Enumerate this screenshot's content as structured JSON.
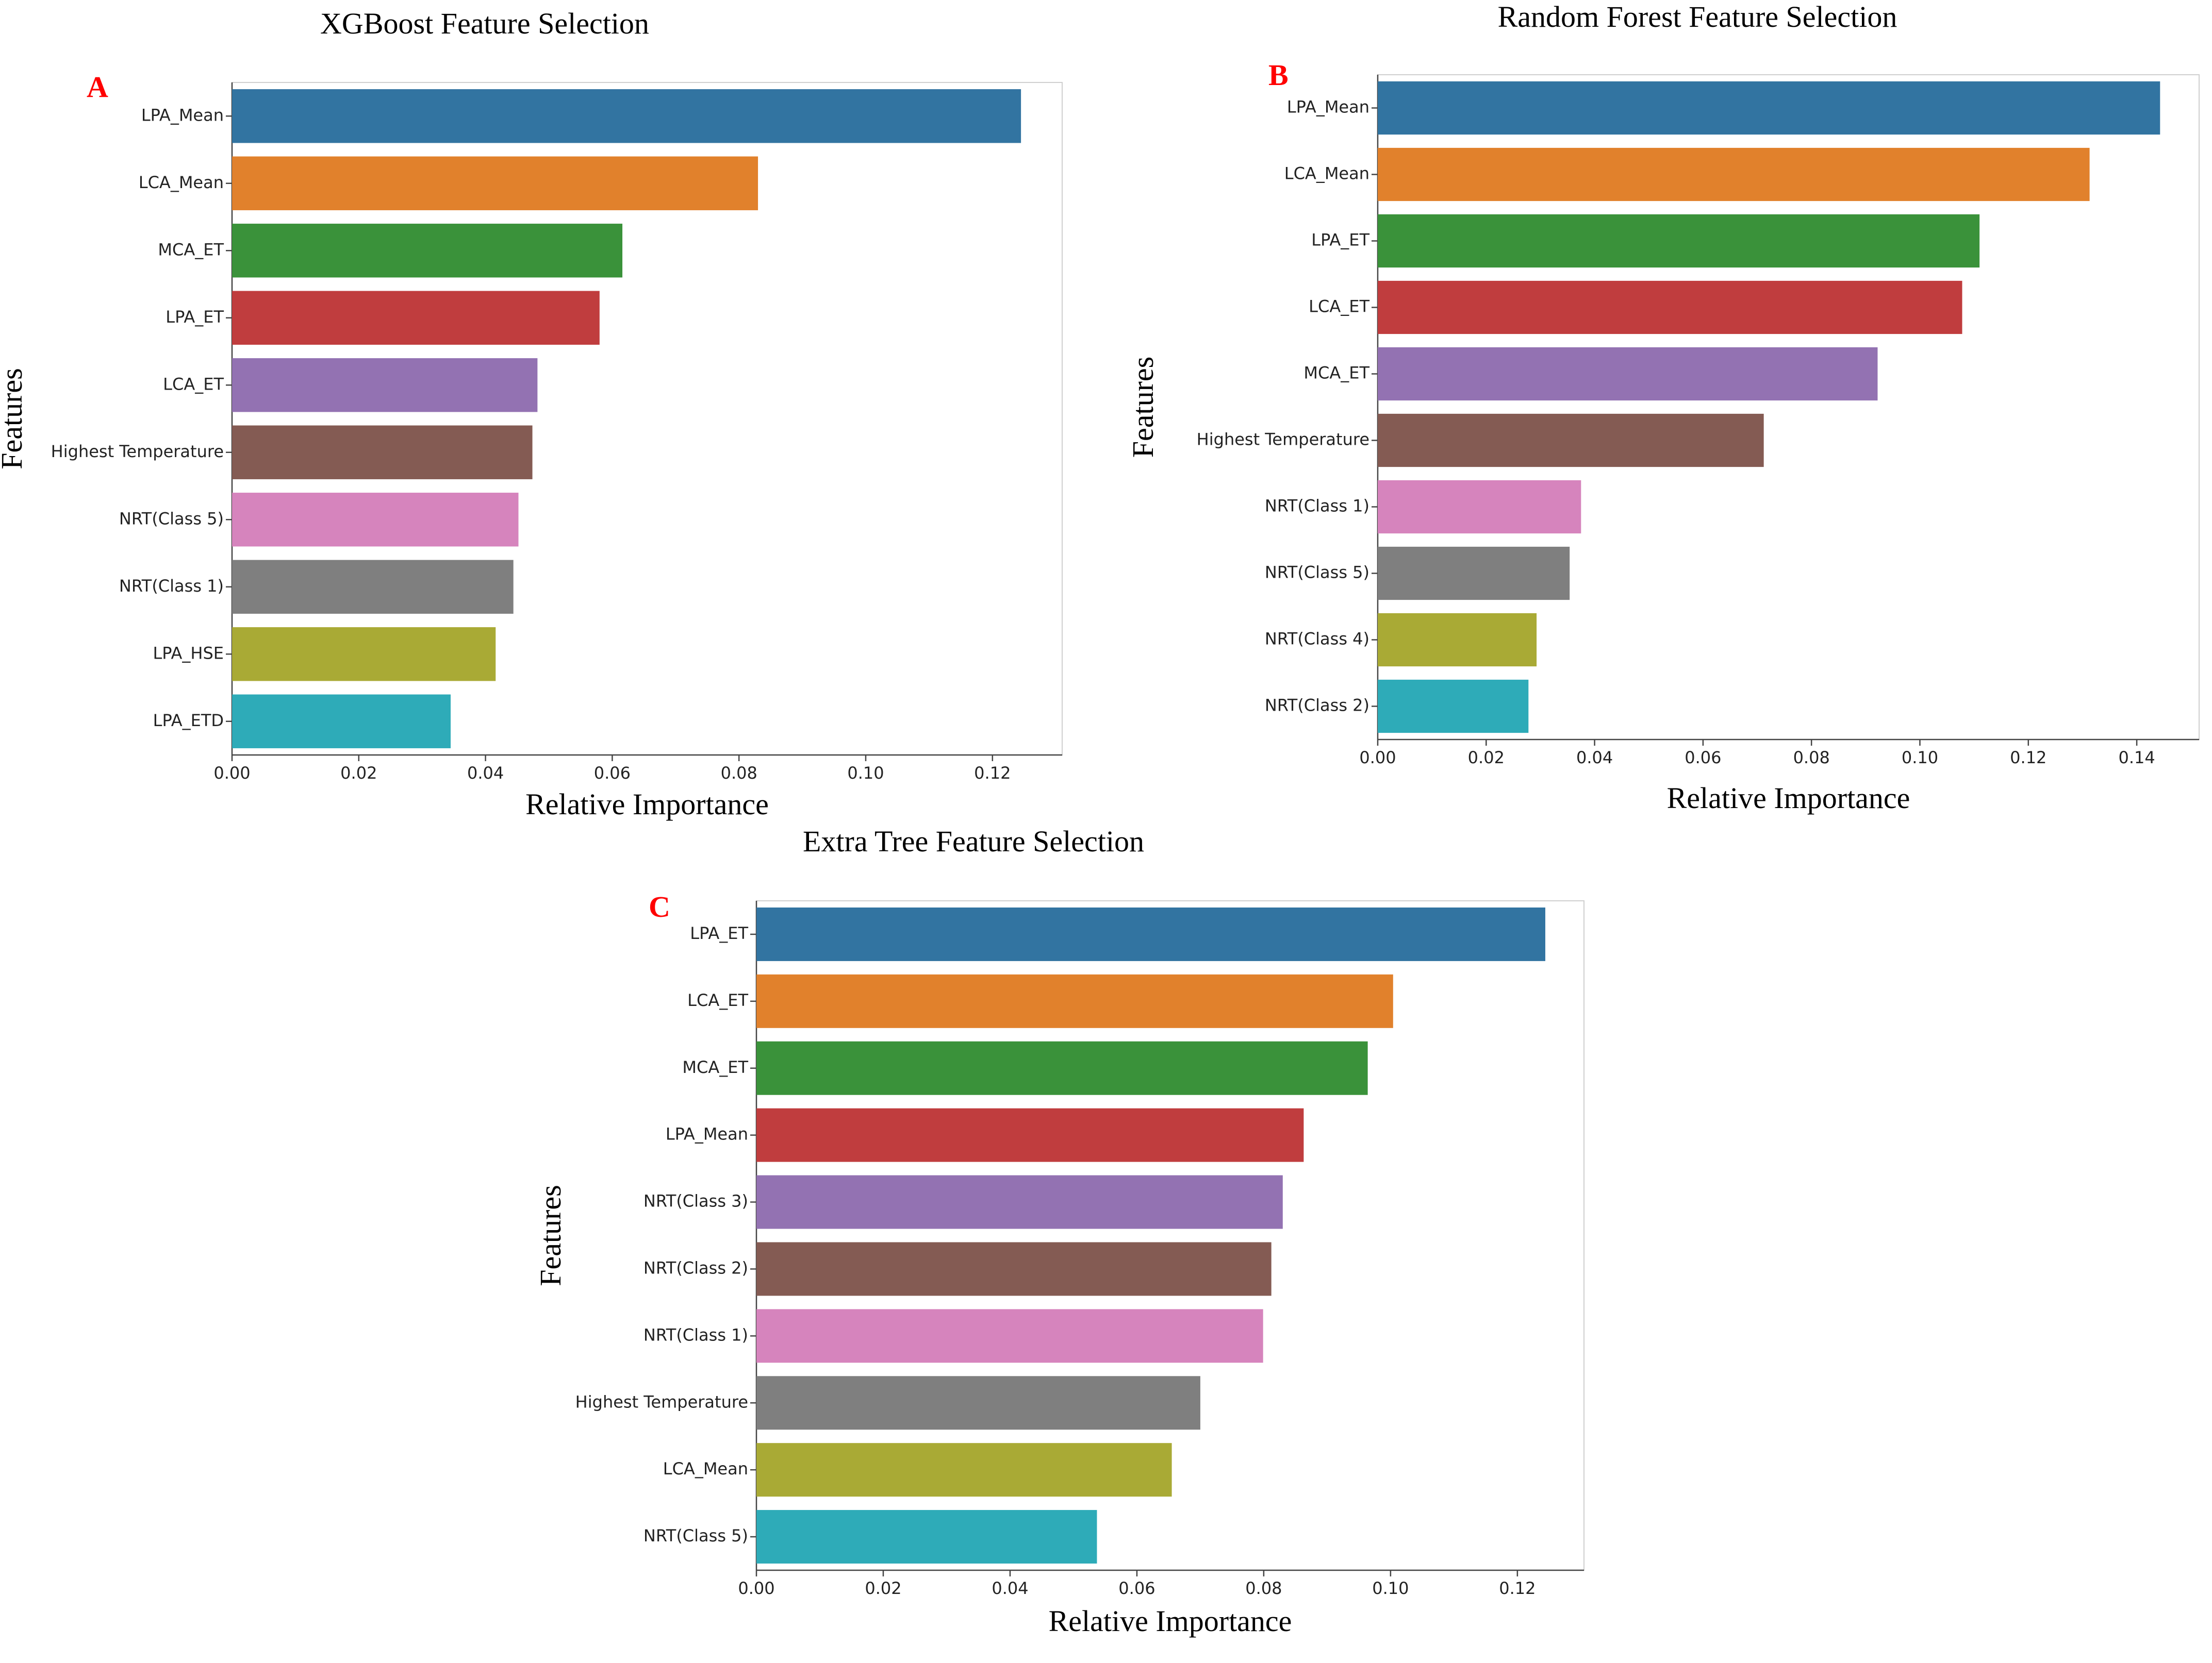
{
  "chart_data": [
    {
      "type": "bar",
      "orientation": "horizontal",
      "panel": "A",
      "title": "XGBoost Feature Selection",
      "xlabel": "Relative Importance",
      "ylabel": "Features",
      "xlim": [
        0,
        0.131
      ],
      "xticks": [
        "0.00",
        "0.02",
        "0.04",
        "0.06",
        "0.08",
        "0.10",
        "0.12"
      ],
      "categories": [
        "LPA_Mean",
        "LCA_Mean",
        "MCA_ET",
        "LPA_ET",
        "LCA_ET",
        "Highest Temperature",
        "NRT(Class 5)",
        "NRT(Class 1)",
        "LPA_HSE",
        "LPA_ETD"
      ],
      "values": [
        0.1245,
        0.083,
        0.0616,
        0.058,
        0.0482,
        0.0474,
        0.0452,
        0.0444,
        0.0416,
        0.0345
      ]
    },
    {
      "type": "bar",
      "orientation": "horizontal",
      "panel": "B",
      "title": "Random Forest Feature Selection",
      "xlabel": "Relative Importance",
      "ylabel": "Features",
      "xlim": [
        0,
        0.1515
      ],
      "xticks": [
        "0.00",
        "0.02",
        "0.04",
        "0.06",
        "0.08",
        "0.10",
        "0.12",
        "0.14"
      ],
      "categories": [
        "LPA_Mean",
        "LCA_Mean",
        "LPA_ET",
        "LCA_ET",
        "MCA_ET",
        "Highest Temperature",
        "NRT(Class 1)",
        "NRT(Class 5)",
        "NRT(Class 4)",
        "NRT(Class 2)"
      ],
      "values": [
        0.1443,
        0.1313,
        0.111,
        0.1078,
        0.0922,
        0.0712,
        0.0375,
        0.0354,
        0.0293,
        0.0278
      ]
    },
    {
      "type": "bar",
      "orientation": "horizontal",
      "panel": "C",
      "title": "Extra Tree Feature Selection",
      "xlabel": "Relative Importance",
      "ylabel": "Features",
      "xlim": [
        0,
        0.1305
      ],
      "xticks": [
        "0.00",
        "0.02",
        "0.04",
        "0.06",
        "0.08",
        "0.10",
        "0.12"
      ],
      "categories": [
        "LPA_ET",
        "LCA_ET",
        "MCA_ET",
        "LPA_Mean",
        "NRT(Class 3)",
        "NRT(Class 2)",
        "NRT(Class 1)",
        "Highest Temperature",
        "LCA_Mean",
        "NRT(Class 5)"
      ],
      "values": [
        0.1244,
        0.1004,
        0.0964,
        0.0863,
        0.083,
        0.0812,
        0.0799,
        0.07,
        0.0655,
        0.0537
      ]
    }
  ],
  "colors": [
    "#3274a1",
    "#e1812c",
    "#3a923a",
    "#c03d3e",
    "#9372b2",
    "#845b53",
    "#d684bd",
    "#7f7f7f",
    "#a9aa35",
    "#2eabb8"
  ]
}
